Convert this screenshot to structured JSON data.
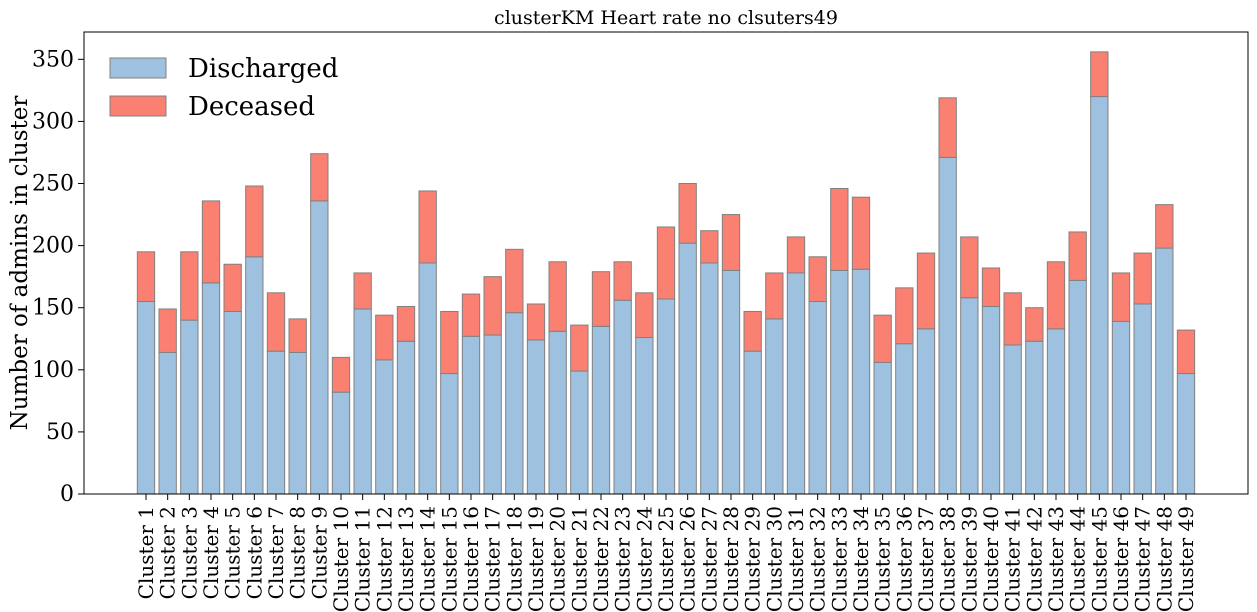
{
  "colors": {
    "discharged": "#9fc1e0",
    "deceased": "#fa8072",
    "bar_edge": "#808080",
    "axis": "#000000"
  },
  "chart_data": {
    "type": "bar",
    "stacked": true,
    "title": "clusterKM Heart rate no clsuters49",
    "xlabel": "",
    "ylabel": "Number of admins in cluster",
    "ylim": [
      0,
      372
    ],
    "yticks": [
      0,
      50,
      100,
      150,
      200,
      250,
      300,
      350
    ],
    "grid": false,
    "legend_position": "top-left",
    "categories": [
      "Cluster 1",
      "Cluster 2",
      "Cluster 3",
      "Cluster 4",
      "Cluster 5",
      "Cluster 6",
      "Cluster 7",
      "Cluster 8",
      "Cluster 9",
      "Cluster 10",
      "Cluster 11",
      "Cluster 12",
      "Cluster 13",
      "Cluster 14",
      "Cluster 15",
      "Cluster 16",
      "Cluster 17",
      "Cluster 18",
      "Cluster 19",
      "Cluster 20",
      "Cluster 21",
      "Cluster 22",
      "Cluster 23",
      "Cluster 24",
      "Cluster 25",
      "Cluster 26",
      "Cluster 27",
      "Cluster 28",
      "Cluster 29",
      "Cluster 30",
      "Cluster 31",
      "Cluster 32",
      "Cluster 33",
      "Cluster 34",
      "Cluster 35",
      "Cluster 36",
      "Cluster 37",
      "Cluster 38",
      "Cluster 39",
      "Cluster 40",
      "Cluster 41",
      "Cluster 42",
      "Cluster 43",
      "Cluster 44",
      "Cluster 45",
      "Cluster 46",
      "Cluster 47",
      "Cluster 48",
      "Cluster 49"
    ],
    "series": [
      {
        "name": "Discharged",
        "values": [
          155,
          114,
          140,
          170,
          147,
          191,
          115,
          114,
          236,
          82,
          149,
          108,
          123,
          186,
          97,
          127,
          128,
          146,
          124,
          131,
          99,
          135,
          156,
          126,
          157,
          202,
          186,
          180,
          115,
          141,
          178,
          155,
          180,
          181,
          106,
          121,
          133,
          271,
          158,
          151,
          120,
          123,
          133,
          172,
          320,
          139,
          153,
          198,
          97
        ]
      },
      {
        "name": "Deceased",
        "values": [
          40,
          35,
          55,
          66,
          38,
          57,
          47,
          27,
          38,
          28,
          29,
          36,
          28,
          58,
          50,
          34,
          47,
          51,
          29,
          56,
          37,
          44,
          31,
          36,
          58,
          48,
          26,
          45,
          32,
          37,
          29,
          36,
          66,
          58,
          38,
          45,
          61,
          48,
          49,
          31,
          42,
          27,
          54,
          39,
          36,
          39,
          41,
          35,
          35
        ]
      }
    ]
  }
}
